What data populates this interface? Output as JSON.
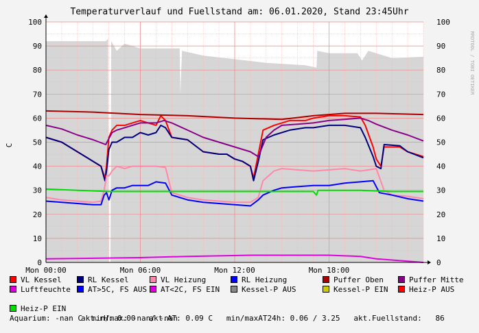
{
  "chart_data": {
    "type": "line",
    "title": "Temperaturverlauf und Fuellstand am: 06.01.2020, Stand 23:45Uhr",
    "ylabel": "C",
    "watermark": "RRDTOOL / TOBI OETIKER",
    "ylim": [
      0,
      100
    ],
    "y_ticks": [
      "0",
      "10",
      "20",
      "30",
      "40",
      "50",
      "60",
      "70",
      "80",
      "90",
      "100"
    ],
    "xlim_hours": [
      0,
      24
    ],
    "x_ticks": [
      {
        "hour": 0,
        "label": "Mon 00:00"
      },
      {
        "hour": 6,
        "label": "Mon 06:00"
      },
      {
        "hour": 12,
        "label": "Mon 12:00"
      },
      {
        "hour": 18,
        "label": "Mon 18:00"
      }
    ],
    "grid": true,
    "area": {
      "name": "akt.Fuellstand",
      "color": "#d6d6d6",
      "points": [
        [
          0,
          92
        ],
        [
          3.8,
          92
        ],
        [
          3.95,
          93
        ],
        [
          4.0,
          0
        ],
        [
          4.1,
          0
        ],
        [
          4.15,
          92
        ],
        [
          4.5,
          88
        ],
        [
          5.0,
          91
        ],
        [
          6.0,
          89
        ],
        [
          8.5,
          89
        ],
        [
          8.55,
          70
        ],
        [
          8.65,
          88
        ],
        [
          10,
          86
        ],
        [
          12,
          84.5
        ],
        [
          14,
          83
        ],
        [
          16.5,
          82
        ],
        [
          17.2,
          81
        ],
        [
          17.25,
          88
        ],
        [
          18,
          87
        ],
        [
          19,
          87
        ],
        [
          19.8,
          87
        ],
        [
          20.1,
          84
        ],
        [
          20.5,
          88
        ],
        [
          22,
          85
        ],
        [
          24,
          85.5
        ]
      ]
    },
    "series": [
      {
        "name": "VL Kessel",
        "color": "#ff0000",
        "points": [
          [
            0,
            52
          ],
          [
            1,
            50
          ],
          [
            2,
            46
          ],
          [
            3,
            42
          ],
          [
            3.5,
            40
          ],
          [
            3.75,
            35
          ],
          [
            3.85,
            40
          ],
          [
            4.0,
            52
          ],
          [
            4.2,
            55
          ],
          [
            4.5,
            57
          ],
          [
            5,
            57
          ],
          [
            5.5,
            58
          ],
          [
            6,
            59
          ],
          [
            6.5,
            58
          ],
          [
            7,
            57
          ],
          [
            7.3,
            61
          ],
          [
            7.6,
            59
          ],
          [
            8,
            52
          ],
          [
            9,
            51
          ],
          [
            10,
            46
          ],
          [
            11,
            45
          ],
          [
            11.5,
            45
          ],
          [
            12,
            43
          ],
          [
            12.5,
            42
          ],
          [
            13,
            40
          ],
          [
            13.2,
            35
          ],
          [
            13.5,
            45
          ],
          [
            13.8,
            55
          ],
          [
            14.5,
            57
          ],
          [
            15.5,
            59
          ],
          [
            16.5,
            59
          ],
          [
            17,
            60
          ],
          [
            18,
            61
          ],
          [
            19,
            61
          ],
          [
            20,
            60.5
          ],
          [
            20.3,
            57
          ],
          [
            20.8,
            48
          ],
          [
            21,
            43
          ],
          [
            21.3,
            40
          ],
          [
            21.5,
            48
          ],
          [
            22.5,
            48
          ],
          [
            23,
            46
          ],
          [
            24,
            44
          ]
        ]
      },
      {
        "name": "RL Kessel",
        "color": "#00007f",
        "points": [
          [
            0,
            52
          ],
          [
            1,
            50
          ],
          [
            2,
            46
          ],
          [
            3,
            42
          ],
          [
            3.5,
            40
          ],
          [
            3.75,
            34
          ],
          [
            3.85,
            38
          ],
          [
            4.0,
            47
          ],
          [
            4.2,
            50
          ],
          [
            4.5,
            50
          ],
          [
            5,
            52
          ],
          [
            5.5,
            52
          ],
          [
            6,
            54
          ],
          [
            6.5,
            53
          ],
          [
            7,
            54
          ],
          [
            7.3,
            57
          ],
          [
            7.6,
            56
          ],
          [
            8,
            52
          ],
          [
            9,
            51
          ],
          [
            10,
            46
          ],
          [
            11,
            45
          ],
          [
            11.5,
            45
          ],
          [
            12,
            43
          ],
          [
            12.5,
            42
          ],
          [
            13,
            40
          ],
          [
            13.2,
            34
          ],
          [
            13.5,
            42
          ],
          [
            13.8,
            51
          ],
          [
            14.5,
            53
          ],
          [
            15.5,
            55
          ],
          [
            16.5,
            56
          ],
          [
            17,
            56
          ],
          [
            18,
            57
          ],
          [
            19,
            57
          ],
          [
            20,
            56
          ],
          [
            20.3,
            52
          ],
          [
            20.8,
            44
          ],
          [
            21,
            40
          ],
          [
            21.3,
            39
          ],
          [
            21.5,
            49
          ],
          [
            22.5,
            48.5
          ],
          [
            23,
            46
          ],
          [
            24,
            43.5
          ]
        ]
      },
      {
        "name": "VL Heizung",
        "color": "#ff88aa",
        "points": [
          [
            0,
            27
          ],
          [
            1,
            26
          ],
          [
            2,
            25.5
          ],
          [
            3,
            25
          ],
          [
            3.5,
            25.5
          ],
          [
            3.7,
            30
          ],
          [
            3.85,
            36
          ],
          [
            4.0,
            36
          ],
          [
            4.2,
            38
          ],
          [
            4.5,
            40
          ],
          [
            5,
            39
          ],
          [
            5.5,
            40
          ],
          [
            6,
            40
          ],
          [
            6.5,
            40
          ],
          [
            7,
            40
          ],
          [
            7.6,
            39.5
          ],
          [
            8,
            29
          ],
          [
            9,
            27
          ],
          [
            10,
            26
          ],
          [
            11,
            25.5
          ],
          [
            12,
            25
          ],
          [
            13,
            25
          ],
          [
            13.5,
            27
          ],
          [
            13.8,
            34
          ],
          [
            14.5,
            38
          ],
          [
            15,
            39
          ],
          [
            16,
            38.5
          ],
          [
            17,
            38
          ],
          [
            18,
            38.5
          ],
          [
            19,
            39
          ],
          [
            20,
            38
          ],
          [
            21,
            39
          ],
          [
            21.5,
            30
          ],
          [
            22,
            28
          ],
          [
            23,
            27.5
          ],
          [
            24,
            26.5
          ]
        ]
      },
      {
        "name": "RL Heizung",
        "color": "#0000ff",
        "points": [
          [
            0,
            25.5
          ],
          [
            1,
            25
          ],
          [
            2,
            24.5
          ],
          [
            3,
            24
          ],
          [
            3.5,
            24
          ],
          [
            3.7,
            28
          ],
          [
            3.85,
            29
          ],
          [
            4.0,
            26
          ],
          [
            4.2,
            30
          ],
          [
            4.5,
            31
          ],
          [
            5,
            31
          ],
          [
            5.5,
            32
          ],
          [
            6,
            32
          ],
          [
            6.5,
            32
          ],
          [
            7,
            33.5
          ],
          [
            7.6,
            33
          ],
          [
            8,
            28
          ],
          [
            9,
            26
          ],
          [
            10,
            25
          ],
          [
            11,
            24.5
          ],
          [
            12,
            24
          ],
          [
            13,
            23.5
          ],
          [
            13.5,
            26
          ],
          [
            13.8,
            28
          ],
          [
            14.5,
            30
          ],
          [
            15,
            31
          ],
          [
            16,
            31.5
          ],
          [
            17,
            32
          ],
          [
            18,
            32
          ],
          [
            19,
            33
          ],
          [
            20,
            33.5
          ],
          [
            20.8,
            34
          ],
          [
            21.2,
            29
          ],
          [
            22,
            28
          ],
          [
            23,
            26.5
          ],
          [
            24,
            25.5
          ]
        ]
      },
      {
        "name": "Puffer Oben",
        "color": "#aa0000",
        "points": [
          [
            0,
            63
          ],
          [
            3,
            62.5
          ],
          [
            6,
            61.5
          ],
          [
            9,
            61
          ],
          [
            12,
            60
          ],
          [
            15,
            59.5
          ],
          [
            17,
            61
          ],
          [
            18,
            61.5
          ],
          [
            19,
            62
          ],
          [
            21,
            62
          ],
          [
            24,
            61.5
          ]
        ]
      },
      {
        "name": "Puffer Mitte",
        "color": "#880088",
        "points": [
          [
            0,
            57
          ],
          [
            1,
            55.5
          ],
          [
            2,
            53
          ],
          [
            3,
            51
          ],
          [
            3.8,
            49
          ],
          [
            4.2,
            54
          ],
          [
            4.5,
            55
          ],
          [
            5,
            56
          ],
          [
            5.5,
            57
          ],
          [
            6,
            58
          ],
          [
            6.5,
            58
          ],
          [
            7,
            58
          ],
          [
            7.5,
            59
          ],
          [
            8,
            58
          ],
          [
            9,
            55
          ],
          [
            10,
            52
          ],
          [
            11,
            50
          ],
          [
            12,
            48
          ],
          [
            13,
            46
          ],
          [
            13.5,
            44
          ],
          [
            14,
            52
          ],
          [
            14.5,
            55
          ],
          [
            15,
            57
          ],
          [
            16,
            57.5
          ],
          [
            17,
            58
          ],
          [
            18,
            59
          ],
          [
            19,
            59.5
          ],
          [
            20,
            60
          ],
          [
            20.5,
            59
          ],
          [
            21,
            57.5
          ],
          [
            22,
            55
          ],
          [
            23,
            53
          ],
          [
            24,
            50.5
          ]
        ]
      },
      {
        "name": "Luftfeuchte",
        "color": "#dd00dd",
        "points": [
          [
            0,
            1.5
          ],
          [
            6,
            2
          ],
          [
            9,
            2.5
          ],
          [
            13,
            3
          ],
          [
            18,
            3
          ],
          [
            20,
            2.5
          ],
          [
            21,
            1.5
          ],
          [
            22,
            1
          ],
          [
            23,
            0.5
          ],
          [
            24,
            0
          ]
        ]
      },
      {
        "name": "Heiz-P EIN",
        "color": "#00dd00",
        "points": [
          [
            0,
            30.5
          ],
          [
            2,
            30
          ],
          [
            4,
            29.5
          ],
          [
            6,
            29.5
          ],
          [
            8,
            29.5
          ],
          [
            12,
            29.5
          ],
          [
            17,
            29.5
          ],
          [
            17.2,
            28
          ],
          [
            17.3,
            30
          ],
          [
            20,
            30
          ],
          [
            22,
            29.5
          ],
          [
            24,
            29.5
          ]
        ]
      }
    ]
  },
  "legend": {
    "rows": [
      [
        {
          "label": "VL Kessel",
          "color": "#ff0000"
        },
        {
          "label": "RL Kessel",
          "color": "#00007f"
        },
        {
          "label": "VL Heizung",
          "color": "#ff88aa"
        },
        {
          "label": "RL Heizung",
          "color": "#0000ff"
        },
        {
          "label": "Puffer Oben",
          "color": "#aa0000"
        },
        {
          "label": "Puffer Mitte",
          "color": "#880088"
        }
      ],
      [
        {
          "label": "Luftfeuchte",
          "color": "#dd00dd"
        },
        {
          "label": "AT>5C, FS AUS",
          "color": "#0000ff"
        },
        {
          "label": "AT<2C, FS EIN",
          "color": "#dd00dd"
        },
        {
          "label": "Kessel-P AUS",
          "color": "#888888"
        },
        {
          "label": "Kessel-P EIN",
          "color": "#cccc00"
        },
        {
          "label": "Heiz-P AUS",
          "color": "#ff0000"
        }
      ]
    ],
    "heiz_p_ein": {
      "label": "Heiz-P EIN",
      "color": "#00dd00"
    },
    "info_line3": "akt.rH: 0.00   akt.AT: 0.09 C   min/maxAT24h: 0.06 / 3.25   akt.Fuellstand:   86",
    "info_line4": "Aquarium: -nan C  min/max: -nan/ -nan"
  }
}
